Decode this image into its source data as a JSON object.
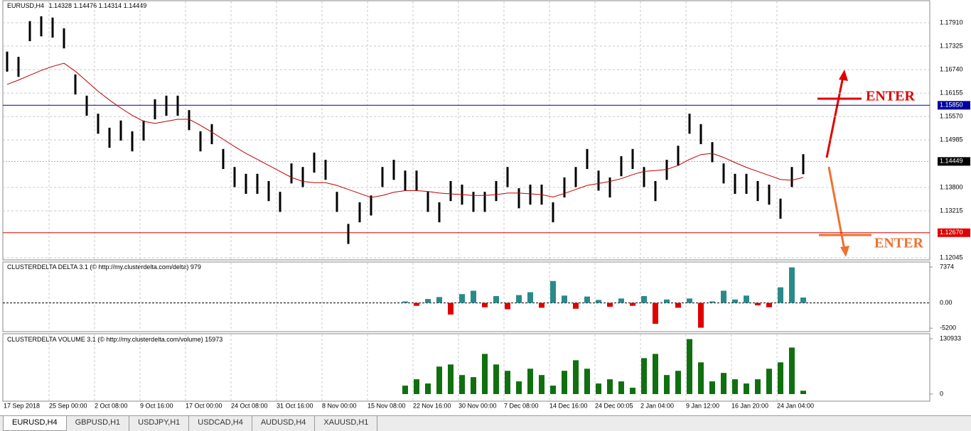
{
  "chart_data": [
    {
      "type": "ohlc",
      "title": "EURUSD,H4",
      "header_values": [
        1.14328,
        1.14476,
        1.14314,
        1.14449
      ],
      "color": "#000000",
      "ma_color": "#c00000",
      "high": [
        1.1719,
        1.1706,
        1.1795,
        1.1807,
        1.1804,
        1.1777,
        1.1662,
        1.1609,
        1.1564,
        1.1529,
        1.1547,
        1.152,
        1.1547,
        1.16,
        1.1609,
        1.1609,
        1.1573,
        1.152,
        1.1538,
        1.1476,
        1.1431,
        1.1414,
        1.1414,
        1.1396,
        1.1369,
        1.144,
        1.1431,
        1.1467,
        1.1449,
        1.1369,
        1.1289,
        1.1343,
        1.136,
        1.1431,
        1.1449,
        1.1422,
        1.1422,
        1.1369,
        1.1343,
        1.1396,
        1.1387,
        1.1369,
        1.1369,
        1.1396,
        1.1431,
        1.1378,
        1.1387,
        1.1387,
        1.1343,
        1.1405,
        1.1431,
        1.1476,
        1.1422,
        1.1405,
        1.1458,
        1.1476,
        1.1431,
        1.1396,
        1.1449,
        1.1484,
        1.1564,
        1.1538,
        1.1493,
        1.144,
        1.1414,
        1.1414,
        1.1396,
        1.1387,
        1.1352,
        1.1431,
        1.1463
      ],
      "low": [
        1.1669,
        1.1656,
        1.1745,
        1.1757,
        1.1754,
        1.1727,
        1.1612,
        1.1559,
        1.1514,
        1.1479,
        1.1497,
        1.147,
        1.1497,
        1.155,
        1.1559,
        1.1559,
        1.1523,
        1.147,
        1.1488,
        1.1426,
        1.1381,
        1.1364,
        1.1364,
        1.1346,
        1.1319,
        1.139,
        1.1381,
        1.1417,
        1.1399,
        1.1319,
        1.1239,
        1.1293,
        1.131,
        1.1381,
        1.1399,
        1.1372,
        1.1372,
        1.1319,
        1.1293,
        1.1346,
        1.1337,
        1.1319,
        1.1319,
        1.1346,
        1.1381,
        1.1328,
        1.1337,
        1.1337,
        1.1293,
        1.1355,
        1.1381,
        1.1426,
        1.1372,
        1.1355,
        1.1408,
        1.1426,
        1.1381,
        1.1346,
        1.1399,
        1.1434,
        1.1514,
        1.1488,
        1.1443,
        1.139,
        1.1364,
        1.1364,
        1.1346,
        1.1337,
        1.1302,
        1.1381,
        1.1413
      ],
      "ma": [
        1.1637,
        1.1648,
        1.166,
        1.1672,
        1.1682,
        1.169,
        1.167,
        1.1645,
        1.162,
        1.1598,
        1.1578,
        1.156,
        1.1545,
        1.154,
        1.1545,
        1.155,
        1.155,
        1.1535,
        1.1518,
        1.15,
        1.1482,
        1.1465,
        1.145,
        1.1435,
        1.142,
        1.1405,
        1.1395,
        1.1392,
        1.1392,
        1.1385,
        1.1375,
        1.1365,
        1.1355,
        1.136,
        1.1368,
        1.1372,
        1.1372,
        1.137,
        1.1366,
        1.1364,
        1.1362,
        1.136,
        1.136,
        1.1362,
        1.1366,
        1.1366,
        1.1364,
        1.1362,
        1.1356,
        1.1365,
        1.1375,
        1.1385,
        1.139,
        1.1395,
        1.1402,
        1.1412,
        1.142,
        1.1422,
        1.1425,
        1.1435,
        1.145,
        1.1462,
        1.1465,
        1.1455,
        1.1442,
        1.143,
        1.142,
        1.141,
        1.14,
        1.1398,
        1.1405
      ],
      "ylim": [
        1.1201,
        1.1846
      ],
      "yticks": [
        {
          "value": 1.1791,
          "label": "1.17910"
        },
        1.17325,
        {
          "value": 1.1674,
          "label": "1.16740"
        },
        1.16155,
        {
          "value": 1.1557,
          "label": "1.15570"
        },
        1.14985,
        {
          "value": 1.138,
          "label": "1.13800"
        },
        1.13215,
        1.12045
      ],
      "hlines": [
        {
          "value": 1.1585,
          "label": "1.15850",
          "color": "#0000a0"
        },
        {
          "value": 1.1267,
          "label": "1.12670",
          "color": "#e00000"
        }
      ],
      "current_price": 1.14449,
      "x_labels": [
        "17 Sep 2018",
        "25 Sep 00:00",
        "2 Oct 08:00",
        "9 Oct 16:00",
        "17 Oct 00:00",
        "24 Oct 08:00",
        "31 Oct 16:00",
        "8 Nov 00:00",
        "15 Nov 08:00",
        "22 Nov 16:00",
        "30 Nov 00:00",
        "7 Dec 08:00",
        "14 Dec 16:00",
        "24 Dec 00:05",
        "2 Jan 04:00",
        "9 Jan 12:00",
        "16 Jan 20:00",
        "24 Jan 04:00"
      ],
      "annotations": [
        {
          "text": "ENTER",
          "color": "#e00000"
        },
        {
          "text": "ENTER",
          "color": "#f07030"
        }
      ],
      "grid": true
    },
    {
      "type": "bar",
      "title": "CLUSTERDELTA DELTA 3.1 (© http://my.clusterdelta.com/delta)",
      "title_value": 979,
      "pos_color": "#2a8a8a",
      "neg_color": "#e00000",
      "values": [
        null,
        null,
        null,
        null,
        null,
        null,
        null,
        null,
        null,
        null,
        null,
        null,
        null,
        null,
        null,
        null,
        null,
        null,
        null,
        null,
        null,
        null,
        null,
        null,
        null,
        null,
        null,
        null,
        null,
        null,
        null,
        null,
        null,
        null,
        null,
        300,
        -600,
        800,
        1200,
        -2400,
        1800,
        2500,
        -900,
        1400,
        -1300,
        1600,
        2200,
        -1000,
        4500,
        1500,
        -1200,
        1300,
        600,
        -800,
        900,
        -600,
        1400,
        -4300,
        700,
        -1000,
        900,
        -5100,
        300,
        2500,
        700,
        1500,
        -500,
        -900,
        3200,
        7300,
        1100
      ],
      "ylim": [
        -5900,
        8400
      ],
      "yticks": [
        7374,
        {
          "value": 0,
          "label": "0.00"
        },
        -5200
      ]
    },
    {
      "type": "bar",
      "title": "CLUSTERDELTA VOLUME 3.1 (© http://my.clusterdelta.com/volume)",
      "title_value": 15973,
      "color": "#107010",
      "values": [
        null,
        null,
        null,
        null,
        null,
        null,
        null,
        null,
        null,
        null,
        null,
        null,
        null,
        null,
        null,
        null,
        null,
        null,
        null,
        null,
        null,
        null,
        null,
        null,
        null,
        null,
        null,
        null,
        null,
        null,
        null,
        null,
        null,
        null,
        null,
        20000,
        35000,
        25000,
        65000,
        70000,
        45000,
        40000,
        95000,
        70000,
        55000,
        30000,
        60000,
        45000,
        20000,
        55000,
        80000,
        60000,
        25000,
        35000,
        30000,
        15000,
        85000,
        95000,
        45000,
        55000,
        130000,
        75000,
        30000,
        50000,
        35000,
        25000,
        35000,
        60000,
        75000,
        110000,
        8000
      ],
      "ylim": [
        -16800,
        141000
      ],
      "yticks": [
        130933,
        0
      ]
    }
  ],
  "tabs": [
    "EURUSD,H4",
    "GBPUSD,H1",
    "USDJPY,H1",
    "USDCAD,H4",
    "AUDUSD,H4",
    "XAUUSD,H1"
  ]
}
